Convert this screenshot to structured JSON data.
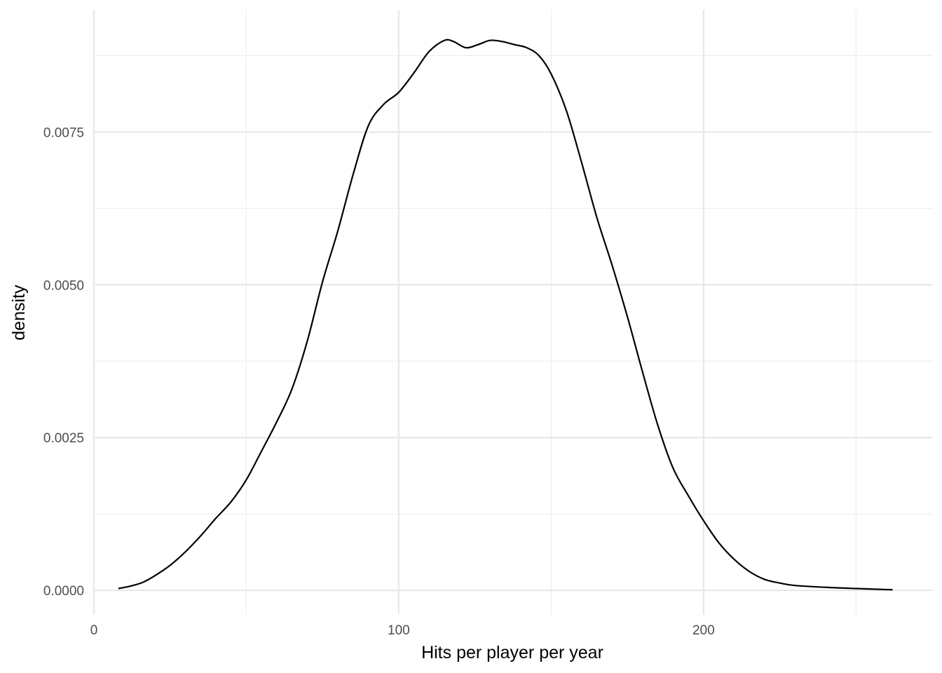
{
  "chart_data": {
    "type": "line",
    "title": "",
    "xlabel": "Hits per player per year",
    "ylabel": "density",
    "xlim": [
      0,
      275
    ],
    "ylim": [
      -0.0004,
      0.0095
    ],
    "x_ticks": [
      0,
      100,
      200
    ],
    "x_tick_labels": [
      "0",
      "100",
      "200"
    ],
    "y_ticks": [
      0,
      0.0025,
      0.005,
      0.0075
    ],
    "y_tick_labels": [
      "0.0000",
      "0.0025",
      "0.0050",
      "0.0075"
    ],
    "x_minor_ticks": [
      50,
      150,
      250
    ],
    "y_minor_ticks": [
      0.00125,
      0.00375,
      0.00625,
      0.00875
    ],
    "grid": true,
    "legend": "none",
    "line_color": "#000000",
    "series": [
      {
        "x": [
          8,
          12,
          16,
          20,
          25,
          30,
          35,
          40,
          45,
          50,
          55,
          60,
          65,
          70,
          75,
          80,
          85,
          90,
          95,
          100,
          105,
          110,
          115,
          118,
          122,
          126,
          130,
          134,
          138,
          142,
          146,
          150,
          155,
          160,
          165,
          170,
          175,
          180,
          185,
          190,
          195,
          200,
          205,
          210,
          215,
          220,
          225,
          230,
          240,
          250,
          262
        ],
        "y": [
          3e-05,
          7e-05,
          0.00013,
          0.00024,
          0.00041,
          0.00063,
          0.00089,
          0.00118,
          0.00145,
          0.00181,
          0.00228,
          0.00276,
          0.0033,
          0.00408,
          0.00505,
          0.00588,
          0.0068,
          0.0076,
          0.00795,
          0.00815,
          0.00847,
          0.00882,
          0.009,
          0.00898,
          0.00888,
          0.00893,
          0.009,
          0.00898,
          0.00893,
          0.00888,
          0.00875,
          0.00845,
          0.00785,
          0.007,
          0.0061,
          0.00532,
          0.00448,
          0.00357,
          0.0027,
          0.002,
          0.00155,
          0.00114,
          0.00078,
          0.00051,
          0.00031,
          0.00018,
          0.00012,
          8e-05,
          5e-05,
          3e-05,
          1e-05
        ]
      }
    ]
  }
}
